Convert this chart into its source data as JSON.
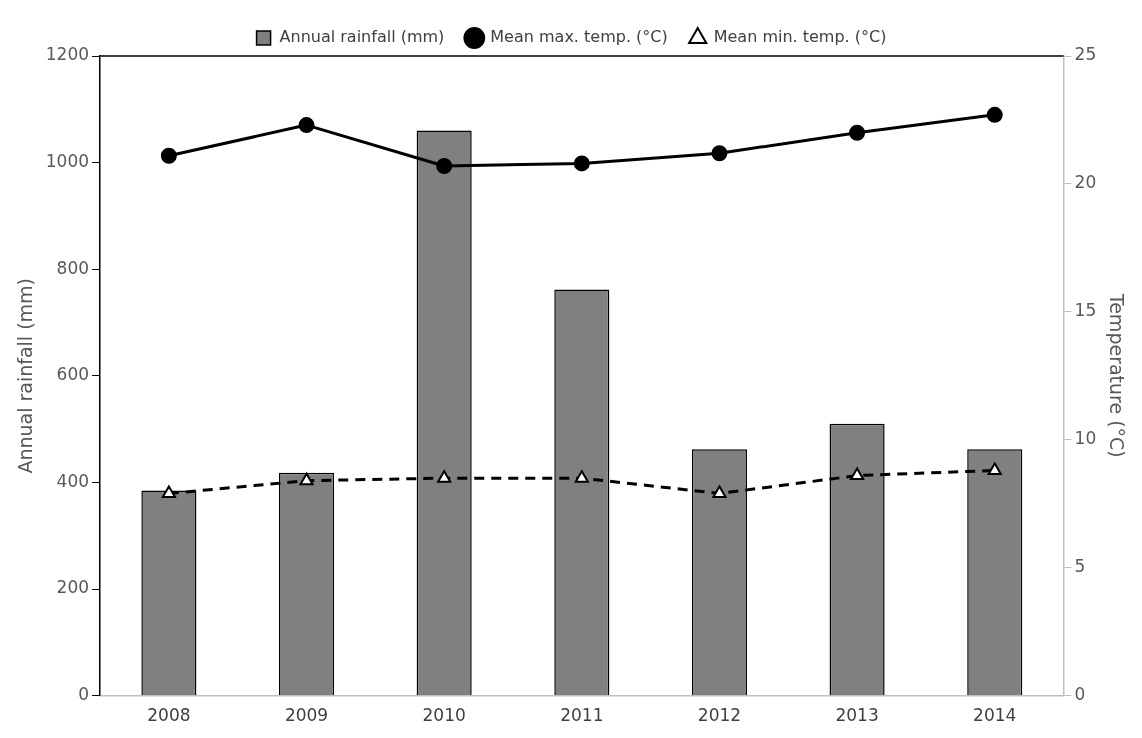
{
  "chart_data": {
    "type": "bar",
    "categories": [
      "2008",
      "2009",
      "2010",
      "2011",
      "2012",
      "2013",
      "2014"
    ],
    "ylabel": "Annual rainfall (mm)",
    "y2label": "Temperature (°C)",
    "series": [
      {
        "name": "Annual rainfall (mm)",
        "color": "#808080",
        "values": [
          385,
          418,
          1060,
          762,
          462,
          510,
          462
        ]
      },
      {
        "name": "Mean max. temp. (°C)",
        "type": "line",
        "axis": "y2",
        "color": "#000000",
        "marker": "circle",
        "line_style": "solid",
        "values": [
          21.1,
          22.3,
          20.7,
          20.8,
          21.2,
          22.0,
          22.7
        ]
      },
      {
        "name": "Mean min. temp. (°C)",
        "type": "line",
        "axis": "y2",
        "color": "#000000",
        "marker": "triangle",
        "line_style": "dashed",
        "values": [
          7.9,
          8.4,
          8.5,
          8.5,
          7.9,
          8.6,
          8.8
        ]
      }
    ],
    "ylim": [
      0,
      1200
    ],
    "yticks": [
      0,
      200,
      400,
      600,
      800,
      1000,
      1200
    ],
    "y2lim": [
      0,
      25
    ],
    "y2ticks": [
      0,
      5,
      10,
      15,
      20,
      25
    ],
    "grid": false,
    "legend": "top"
  }
}
